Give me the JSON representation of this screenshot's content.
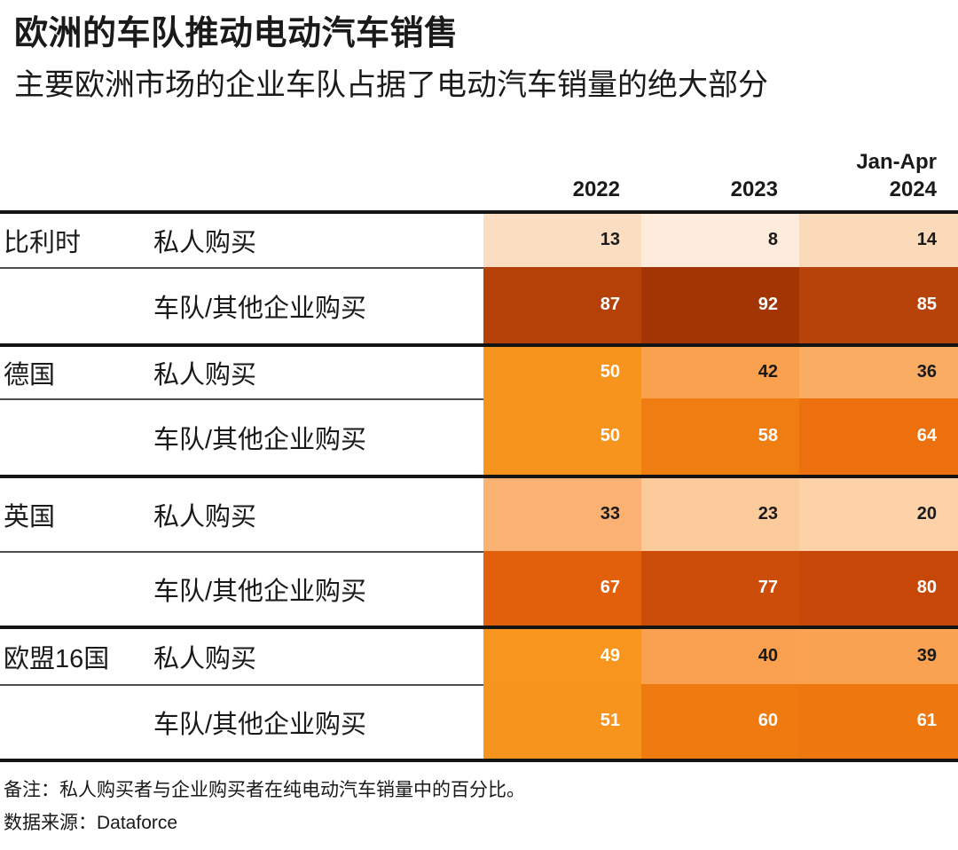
{
  "title": "欧洲的车队推动电动汽车销售",
  "subtitle": "主要欧洲市场的企业车队占据了电动汽车销量的绝大部分",
  "header": {
    "col1": "2022",
    "col2": "2023",
    "col3": "Jan-Apr\n2024"
  },
  "note": "备注：私人购买者与企业购买者在纯电动汽车销量中的百分比。",
  "source": "数据来源：Dataforce",
  "chart_data": {
    "type": "heatmap",
    "title": "欧洲的车队推动电动汽车销售",
    "subtitle": "主要欧洲市场的企业车队占据了电动汽车销量的绝大部分",
    "columns": [
      "2022",
      "2023",
      "Jan-Apr 2024"
    ],
    "note": "备注：私人购买者与企业购买者在纯电动汽车销量中的百分比。",
    "source": "数据来源：Dataforce",
    "groups": [
      {
        "country": "比利时",
        "rows": [
          {
            "label": "私人购买",
            "values": [
              13,
              8,
              14
            ],
            "colors": [
              "#FBDDC1",
              "#FDEBDC",
              "#FBDABA"
            ],
            "text_colors": [
              "#1a1a1a",
              "#1a1a1a",
              "#1a1a1a"
            ]
          },
          {
            "label": "车队/其他企业购买",
            "values": [
              87,
              92,
              85
            ],
            "colors": [
              "#B54108",
              "#A33505",
              "#B8430A"
            ],
            "text_colors": [
              "#ffffff",
              "#ffffff",
              "#ffffff"
            ]
          }
        ]
      },
      {
        "country": "德国",
        "rows": [
          {
            "label": "私人购买",
            "values": [
              50,
              42,
              36
            ],
            "colors": [
              "#F7941E",
              "#F9A14F",
              "#FAAC63"
            ],
            "text_colors": [
              "#ffffff",
              "#1a1a1a",
              "#1a1a1a"
            ]
          },
          {
            "label": "车队/其他企业购买",
            "values": [
              50,
              58,
              64
            ],
            "colors": [
              "#F7941E",
              "#F07D12",
              "#EC700D"
            ],
            "text_colors": [
              "#ffffff",
              "#ffffff",
              "#ffffff"
            ]
          }
        ]
      },
      {
        "country": "英国",
        "rows": [
          {
            "label": "私人购买",
            "values": [
              33,
              23,
              20
            ],
            "colors": [
              "#FBB171",
              "#FCCB9B",
              "#FDD2A9"
            ],
            "text_colors": [
              "#1a1a1a",
              "#1a1a1a",
              "#1a1a1a"
            ]
          },
          {
            "label": "车队/其他企业购买",
            "values": [
              67,
              77,
              80
            ],
            "colors": [
              "#E2600C",
              "#CC4D09",
              "#C64708"
            ],
            "text_colors": [
              "#ffffff",
              "#ffffff",
              "#ffffff"
            ]
          }
        ]
      },
      {
        "country": "欧盟16国",
        "rows": [
          {
            "label": "私人购买",
            "values": [
              49,
              40,
              39
            ],
            "colors": [
              "#F7951F",
              "#F9A150",
              "#F9A352"
            ],
            "text_colors": [
              "#ffffff",
              "#1a1a1a",
              "#1a1a1a"
            ]
          },
          {
            "label": "车队/其他企业购买",
            "values": [
              51,
              60,
              61
            ],
            "colors": [
              "#F7941E",
              "#EF7A10",
              "#EE780F"
            ],
            "text_colors": [
              "#ffffff",
              "#ffffff",
              "#ffffff"
            ]
          }
        ]
      }
    ]
  }
}
